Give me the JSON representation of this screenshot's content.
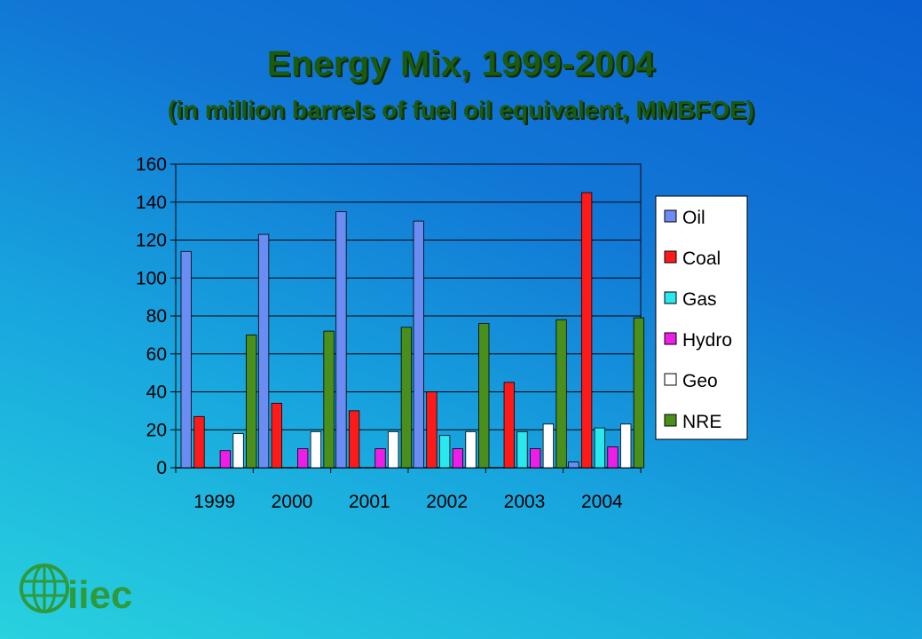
{
  "chart_data": {
    "type": "bar",
    "title": "Energy Mix, 1999-2004",
    "subtitle": "(in million barrels of fuel oil equivalent, MMBFOE)",
    "categories": [
      "1999",
      "2000",
      "2001",
      "2002",
      "2003",
      "2004"
    ],
    "series": [
      {
        "name": "Oil",
        "color": "#6b8cf2",
        "values": [
          114,
          123,
          135,
          130,
          0,
          3
        ]
      },
      {
        "name": "Coal",
        "color": "#ff1a1a",
        "values": [
          27,
          34,
          30,
          40,
          45,
          145
        ]
      },
      {
        "name": "Gas",
        "color": "#29e8ee",
        "values": [
          0,
          0,
          0,
          17,
          19,
          21
        ]
      },
      {
        "name": "Hydro",
        "color": "#ee1ee8",
        "values": [
          9,
          10,
          10,
          10,
          10,
          11
        ]
      },
      {
        "name": "Geo",
        "color": "#ffffff",
        "values": [
          18,
          19,
          19,
          19,
          23,
          23
        ]
      },
      {
        "name": "NRE",
        "color": "#4a8f1c",
        "values": [
          70,
          72,
          74,
          76,
          78,
          79
        ]
      }
    ],
    "ylim": [
      0,
      160
    ],
    "yticks": [
      0,
      20,
      40,
      60,
      80,
      100,
      120,
      140,
      160
    ],
    "grid": true,
    "legend": "right"
  },
  "logo": {
    "text": "iiec"
  }
}
